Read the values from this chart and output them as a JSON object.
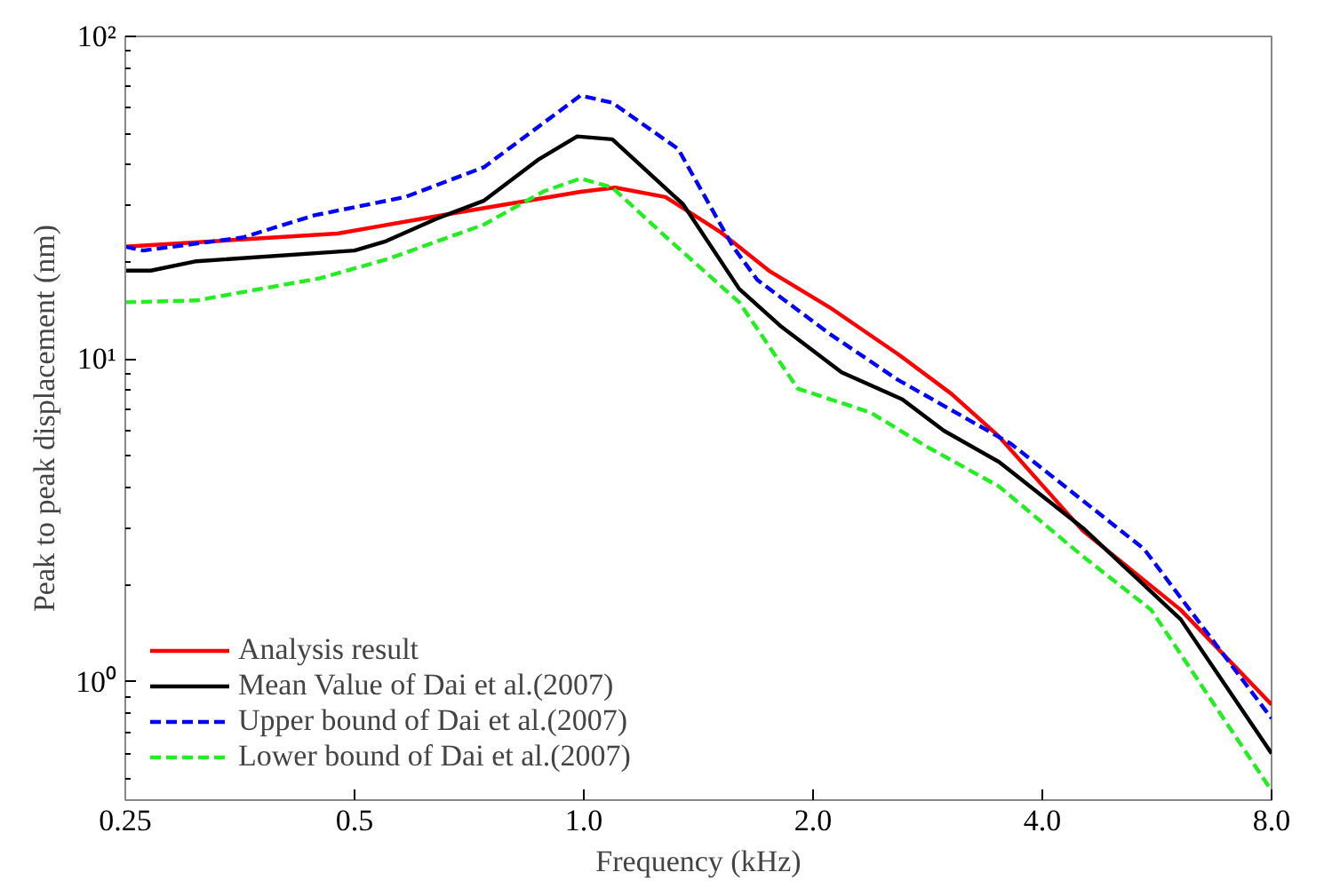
{
  "chart_data": {
    "type": "line",
    "xlabel": "Frequency (kHz)",
    "ylabel": "Peak to peak displacement (nm)",
    "log": "xy",
    "grid": false,
    "legend": "bottom left",
    "xlim": [
      0.25,
      8.0
    ],
    "ylim": [
      0.43,
      100
    ],
    "xticks": [
      0.25,
      0.5,
      {
        "value": 1,
        "label": "1.0"
      },
      {
        "value": 2,
        "label": "2.0"
      },
      {
        "value": 4,
        "label": "4.0"
      },
      {
        "value": 8,
        "label": "8.0"
      }
    ],
    "yticks": [
      {
        "value": 1,
        "label": "10⁰"
      },
      {
        "value": 10,
        "label": "10¹"
      },
      {
        "value": 100,
        "label": "10²"
      }
    ],
    "series": [
      {
        "name": "Analysis result",
        "color": "#ff0000",
        "line_style": "solid",
        "x": [
          0.25,
          0.475,
          0.673,
          0.99,
          1.1,
          1.28,
          1.51,
          1.75,
          2.1,
          2.58,
          3.04,
          3.51,
          4.52,
          6.08,
          8.0
        ],
        "values": [
          22.3,
          24.5,
          28.3,
          33,
          34,
          31.8,
          24.8,
          18.8,
          14.5,
          10.4,
          7.8,
          5.75,
          2.94,
          1.67,
          0.85
        ]
      },
      {
        "name": "Mean Value of Dai et al.(2007)",
        "color": "#000000",
        "line_style": "solid",
        "x": [
          0.25,
          0.27,
          0.31,
          0.5,
          0.55,
          0.64,
          0.74,
          0.87,
          0.98,
          1.09,
          1.35,
          1.6,
          1.81,
          2.18,
          2.62,
          2.97,
          3.51,
          4.52,
          6.08,
          8.0
        ],
        "values": [
          18.8,
          18.8,
          20.1,
          21.7,
          23.2,
          27.2,
          31,
          41.4,
          49,
          48,
          30.2,
          16.5,
          12.7,
          9.1,
          7.5,
          6.0,
          4.8,
          3.0,
          1.56,
          0.6
        ]
      },
      {
        "name": "Upper bound of Dai et al.(2007)",
        "color": "#0000ff",
        "line_style": "dashed",
        "x": [
          0.25,
          0.264,
          0.356,
          0.443,
          0.583,
          0.739,
          0.99,
          1.09,
          1.33,
          1.57,
          1.69,
          2.1,
          2.58,
          3.64,
          5.44,
          8.0
        ],
        "values": [
          22.3,
          21.7,
          23.8,
          27.9,
          31.8,
          39.3,
          65.6,
          62.3,
          44.8,
          22.3,
          17.6,
          12.0,
          8.65,
          5.46,
          2.58,
          0.77
        ]
      },
      {
        "name": "Lower bound of Dai et al.(2007)",
        "color": "#22ee22",
        "line_style": "dashed",
        "x": [
          0.25,
          0.31,
          0.45,
          0.552,
          0.739,
          0.886,
          0.99,
          1.09,
          1.3,
          1.6,
          1.91,
          2.38,
          2.81,
          3.51,
          4.52,
          5.56,
          8.0
        ],
        "values": [
          15,
          15.2,
          17.8,
          20.4,
          26.1,
          33.1,
          36.3,
          34,
          23.2,
          15,
          8.1,
          6.83,
          5.38,
          4.03,
          2.45,
          1.67,
          0.46
        ]
      }
    ]
  }
}
